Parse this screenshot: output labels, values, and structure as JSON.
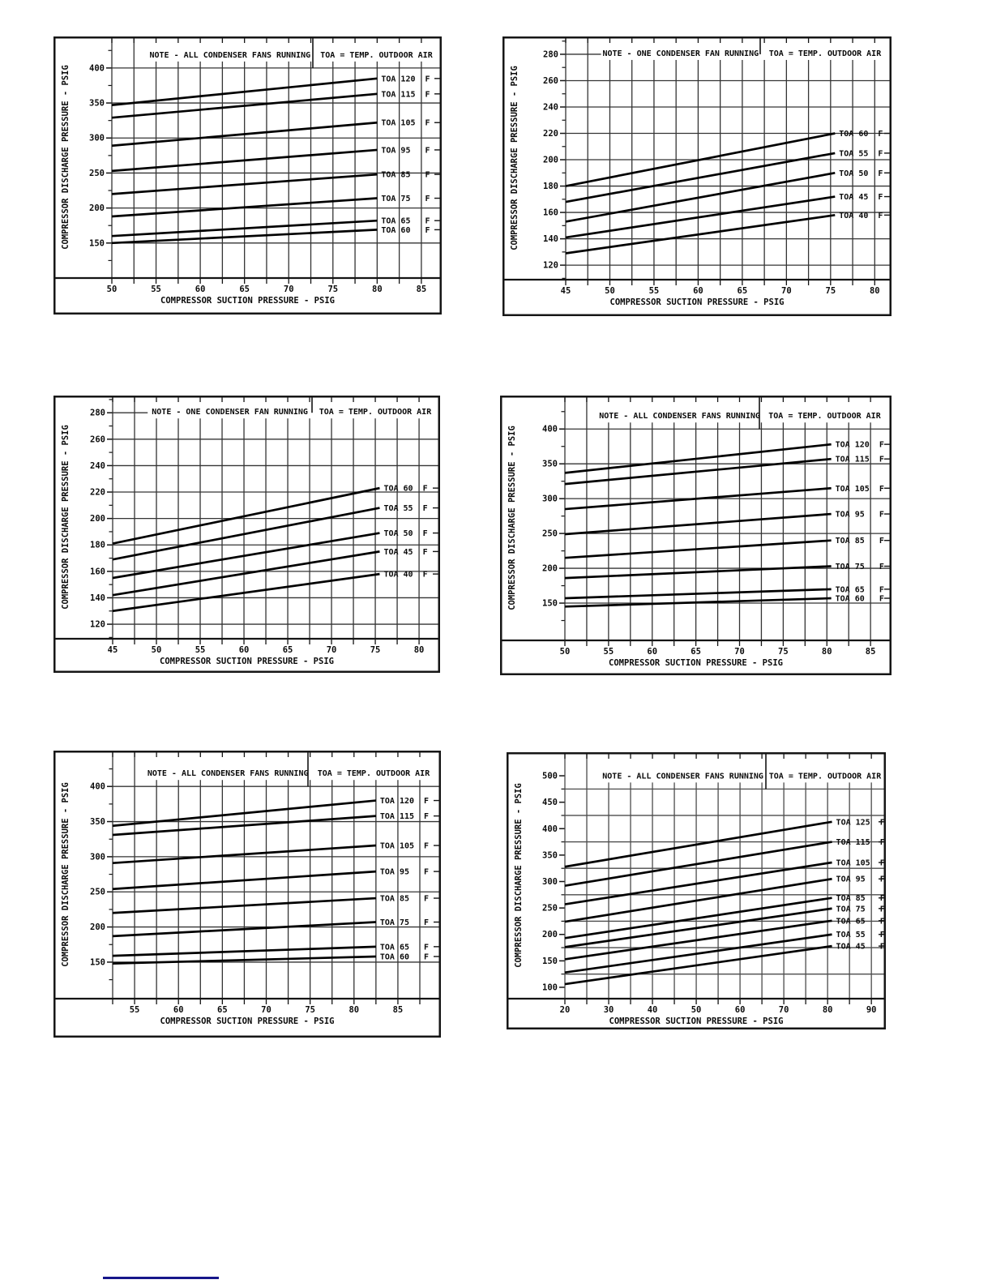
{
  "page": {
    "background": "#ffffff",
    "footer_rule_color": "#16168a"
  },
  "chart_data": [
    {
      "type": "line",
      "position": "top-left",
      "note_label": "NOTE - ALL CONDENSER FANS RUNNING",
      "toa_label": "TOA = TEMP. OUTDOOR AIR",
      "xlabel": "COMPRESSOR SUCTION PRESSURE - PSIG",
      "ylabel": "COMPRESSOR DISCHARGE PRESSURE - PSIG",
      "x_axis": {
        "tick_values": [
          50,
          55,
          60,
          65,
          70,
          75,
          80,
          85
        ],
        "minor_step": 2.5,
        "range": [
          50,
          87.3
        ]
      },
      "y_axis": {
        "tick_values": [
          150,
          200,
          250,
          300,
          350,
          400
        ],
        "minor_values": [
          125,
          175,
          225,
          275,
          325,
          375,
          425
        ],
        "grid_values": [
          150,
          200,
          250,
          300,
          350,
          400
        ],
        "range": [
          100,
          445
        ]
      },
      "series": [
        {
          "label": "TOA 120  F",
          "points": [
            [
              50,
              347
            ],
            [
              80,
              385
            ]
          ]
        },
        {
          "label": "TOA 115  F",
          "points": [
            [
              50,
              329
            ],
            [
              80,
              363
            ]
          ]
        },
        {
          "label": "TOA 105  F",
          "points": [
            [
              50,
              289
            ],
            [
              80,
              322
            ]
          ]
        },
        {
          "label": "TOA 95   F",
          "points": [
            [
              50,
              253
            ],
            [
              80,
              283
            ]
          ]
        },
        {
          "label": "TOA 85   F",
          "points": [
            [
              50,
              220
            ],
            [
              80,
              248
            ]
          ]
        },
        {
          "label": "TOA 75   F",
          "points": [
            [
              50,
              188
            ],
            [
              80,
              214
            ]
          ]
        },
        {
          "label": "TOA 65   F",
          "points": [
            [
              50,
              160
            ],
            [
              80,
              182
            ]
          ]
        },
        {
          "label": "TOA 60   F",
          "points": [
            [
              50,
              150
            ],
            [
              80,
              169
            ]
          ]
        }
      ]
    },
    {
      "type": "line",
      "position": "top-right",
      "note_label": "NOTE - ONE CONDENSER FAN RUNNING",
      "toa_label": "TOA = TEMP. OUTDOOR AIR",
      "xlabel": "COMPRESSOR SUCTION PRESSURE - PSIG",
      "ylabel": "COMPRESSOR DISCHARGE PRESSURE - PSIG",
      "x_axis": {
        "tick_values": [
          45,
          50,
          55,
          60,
          65,
          70,
          75,
          80
        ],
        "minor_step": 2.5,
        "range": [
          45,
          81.9
        ]
      },
      "y_axis": {
        "tick_values": [
          120,
          140,
          160,
          180,
          200,
          220,
          240,
          260,
          280
        ],
        "minor_values": [
          110,
          130,
          150,
          170,
          190,
          210,
          230,
          250,
          270,
          290
        ],
        "grid_values": [
          120,
          140,
          160,
          180,
          200,
          220,
          240,
          260,
          280
        ],
        "range": [
          109,
          293.5
        ]
      },
      "series": [
        {
          "label": "TOA 60  F",
          "points": [
            [
              45,
              180
            ],
            [
              75.5,
              220
            ]
          ]
        },
        {
          "label": "TOA 55  F",
          "points": [
            [
              45,
              168
            ],
            [
              75.5,
              205
            ]
          ]
        },
        {
          "label": "TOA 50  F",
          "points": [
            [
              45,
              153
            ],
            [
              75.5,
              190
            ]
          ]
        },
        {
          "label": "TOA 45  F",
          "points": [
            [
              45,
              141
            ],
            [
              75.5,
              172
            ]
          ]
        },
        {
          "label": "TOA 40  F",
          "points": [
            [
              45,
              129
            ],
            [
              75.5,
              158
            ]
          ]
        }
      ]
    },
    {
      "type": "line",
      "position": "middle-left",
      "note_label": "NOTE - ONE CONDENSER FAN RUNNING",
      "toa_label": "TOA = TEMP. OUTDOOR AIR",
      "xlabel": "COMPRESSOR SUCTION PRESSURE - PSIG",
      "ylabel": "COMPRESSOR DISCHARGE PRESSURE - PSIG",
      "x_axis": {
        "tick_values": [
          45,
          50,
          55,
          60,
          65,
          70,
          75,
          80
        ],
        "minor_step": 2.5,
        "range": [
          45,
          82.4
        ]
      },
      "y_axis": {
        "tick_values": [
          120,
          140,
          160,
          180,
          200,
          220,
          240,
          260,
          280
        ],
        "minor_values": [
          110,
          130,
          150,
          170,
          190,
          210,
          230,
          250,
          270,
          290
        ],
        "grid_values": [
          120,
          140,
          160,
          180,
          200,
          220,
          240,
          260,
          280
        ],
        "range": [
          109,
          293
        ]
      },
      "series": [
        {
          "label": "TOA 60  F",
          "points": [
            [
              45,
              181
            ],
            [
              75.5,
              223
            ]
          ]
        },
        {
          "label": "TOA 55  F",
          "points": [
            [
              45,
              169
            ],
            [
              75.5,
              208
            ]
          ]
        },
        {
          "label": "TOA 50  F",
          "points": [
            [
              45,
              155
            ],
            [
              75.5,
              189
            ]
          ]
        },
        {
          "label": "TOA 45  F",
          "points": [
            [
              45,
              142
            ],
            [
              75.5,
              175
            ]
          ]
        },
        {
          "label": "TOA 40  F",
          "points": [
            [
              45,
              130
            ],
            [
              75.5,
              158
            ]
          ]
        }
      ]
    },
    {
      "type": "line",
      "position": "middle-right",
      "note_label": "NOTE - ALL CONDENSER FANS RUNNING",
      "toa_label": "TOA = TEMP. OUTDOOR AIR",
      "xlabel": "COMPRESSOR SUCTION PRESSURE - PSIG",
      "ylabel": "COMPRESSOR DISCHARGE PRESSURE - PSIG",
      "x_axis": {
        "tick_values": [
          50,
          55,
          60,
          65,
          70,
          75,
          80,
          85
        ],
        "minor_step": 2.5,
        "range": [
          50,
          87.4
        ]
      },
      "y_axis": {
        "tick_values": [
          150,
          200,
          250,
          300,
          350,
          400
        ],
        "minor_values": [
          125,
          175,
          225,
          275,
          325,
          375,
          425
        ],
        "grid_values": [
          150,
          200,
          250,
          300,
          350,
          400
        ],
        "range": [
          96.5,
          448
        ]
      },
      "series": [
        {
          "label": "TOA 120  F",
          "points": [
            [
              50,
              337
            ],
            [
              80.5,
              378
            ]
          ]
        },
        {
          "label": "TOA 115  F",
          "points": [
            [
              50,
              321
            ],
            [
              80.5,
              357
            ]
          ]
        },
        {
          "label": "TOA 105  F",
          "points": [
            [
              50,
              285
            ],
            [
              80.5,
              315
            ]
          ]
        },
        {
          "label": "TOA 95   F",
          "points": [
            [
              50,
              249
            ],
            [
              80.5,
              278
            ]
          ]
        },
        {
          "label": "TOA 85   F",
          "points": [
            [
              50,
              215
            ],
            [
              80.5,
              240
            ]
          ]
        },
        {
          "label": "TOA 75   F",
          "points": [
            [
              50,
              186
            ],
            [
              80.5,
              203
            ]
          ]
        },
        {
          "label": "TOA 65   F",
          "points": [
            [
              50,
              157
            ],
            [
              80.5,
              170
            ]
          ]
        },
        {
          "label": "TOA 60   F",
          "points": [
            [
              50,
              145
            ],
            [
              80.5,
              157
            ]
          ]
        }
      ]
    },
    {
      "type": "line",
      "position": "bottom-left",
      "note_label": "NOTE - ALL CONDENSER FANS RUNNING",
      "toa_label": "TOA = TEMP. OUTDOOR AIR",
      "xlabel": "COMPRESSOR SUCTION PRESSURE - PSIG",
      "ylabel": "COMPRESSOR DISCHARGE PRESSURE - PSIG",
      "x_axis": {
        "tick_values": [
          55,
          60,
          65,
          70,
          75,
          80,
          85
        ],
        "minor_step": 2.5,
        "range": [
          52.5,
          89.9
        ]
      },
      "y_axis": {
        "tick_values": [
          150,
          200,
          250,
          300,
          350,
          400
        ],
        "minor_values": [
          125,
          175,
          225,
          275,
          325,
          375,
          425
        ],
        "grid_values": [
          150,
          200,
          250,
          300,
          350,
          400
        ],
        "range": [
          98,
          451
        ]
      },
      "series": [
        {
          "label": "TOA 120  F",
          "points": [
            [
              52.5,
              344
            ],
            [
              82.5,
              380
            ]
          ]
        },
        {
          "label": "TOA 115  F",
          "points": [
            [
              52.5,
              331
            ],
            [
              82.5,
              358
            ]
          ]
        },
        {
          "label": "TOA 105  F",
          "points": [
            [
              52.5,
              291
            ],
            [
              82.5,
              316
            ]
          ]
        },
        {
          "label": "TOA 95   F",
          "points": [
            [
              52.5,
              254
            ],
            [
              82.5,
              279
            ]
          ]
        },
        {
          "label": "TOA 85   F",
          "points": [
            [
              52.5,
              220
            ],
            [
              82.5,
              241
            ]
          ]
        },
        {
          "label": "TOA 75   F",
          "points": [
            [
              52.5,
              187
            ],
            [
              82.5,
              207
            ]
          ]
        },
        {
          "label": "TOA 65   F",
          "points": [
            [
              52.5,
              159
            ],
            [
              82.5,
              172
            ]
          ]
        },
        {
          "label": "TOA 60   F",
          "points": [
            [
              52.5,
              148
            ],
            [
              82.5,
              158
            ]
          ]
        }
      ]
    },
    {
      "type": "line",
      "position": "bottom-right",
      "note_label": "NOTE - ALL CONDENSER FANS RUNNING",
      "toa_label": "TOA = TEMP. OUTDOOR AIR",
      "xlabel": "COMPRESSOR SUCTION PRESSURE - PSIG",
      "ylabel": "COMPRESSOR DISCHARGE PRESSURE - PSIG",
      "x_axis": {
        "tick_values": [
          20,
          30,
          40,
          50,
          60,
          70,
          80,
          90
        ],
        "minor_step": 5,
        "range": [
          20,
          93.3
        ]
      },
      "y_axis": {
        "tick_values": [
          100,
          150,
          200,
          250,
          300,
          350,
          400,
          450,
          500
        ],
        "minor_values": [
          125,
          175,
          225,
          275,
          325,
          375,
          425,
          475
        ],
        "grid_values": [
          125,
          175,
          225,
          275,
          325,
          375,
          425,
          475
        ],
        "range": [
          78.5,
          544.5
        ]
      },
      "series": [
        {
          "label": "TOA 125  F",
          "points": [
            [
              20,
              328
            ],
            [
              81,
              413
            ]
          ]
        },
        {
          "label": "TOA 115  F",
          "points": [
            [
              20,
              292
            ],
            [
              81,
              375
            ]
          ]
        },
        {
          "label": "TOA 105  F",
          "points": [
            [
              20,
              257
            ],
            [
              81,
              336
            ]
          ]
        },
        {
          "label": "TOA 95   F",
          "points": [
            [
              20,
              224
            ],
            [
              81,
              305
            ]
          ]
        },
        {
          "label": "TOA 85   F",
          "points": [
            [
              20,
              193
            ],
            [
              81,
              269
            ]
          ]
        },
        {
          "label": "TOA 75   F",
          "points": [
            [
              20,
              176
            ],
            [
              81,
              249
            ]
          ]
        },
        {
          "label": "TOA 65   F",
          "points": [
            [
              20,
              153
            ],
            [
              81,
              226
            ]
          ]
        },
        {
          "label": "TOA 55   F",
          "points": [
            [
              20,
              128
            ],
            [
              81,
              200
            ]
          ]
        },
        {
          "label": "TOA 45   F",
          "points": [
            [
              20,
              106
            ],
            [
              81,
              178
            ]
          ]
        }
      ]
    }
  ]
}
